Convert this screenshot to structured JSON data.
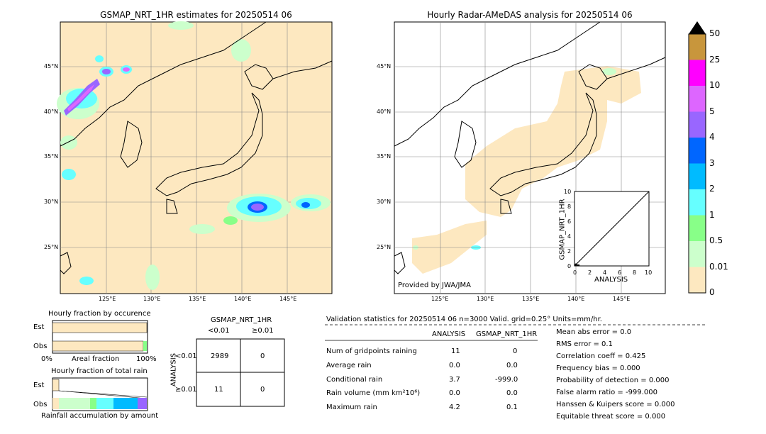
{
  "left_map": {
    "title": "GSMAP_NRT_1HR estimates for 20250514 06",
    "lat_labels": [
      "45°N",
      "40°N",
      "35°N",
      "30°N",
      "25°N"
    ],
    "lon_labels": [
      "125°E",
      "130°E",
      "135°E",
      "140°E",
      "145°E"
    ]
  },
  "right_map": {
    "title": "Hourly Radar-AMeDAS analysis for 20250514 06",
    "lat_labels": [
      "45°N",
      "40°N",
      "35°N",
      "30°N",
      "25°N"
    ],
    "lon_labels": [
      "125°E",
      "130°E",
      "135°E",
      "140°E",
      "145°E"
    ],
    "credit": "Provided by JWA/JMA"
  },
  "inset_scatter": {
    "ylabel": "GSMAP_NRT_1HR",
    "xlabel": "ANALYSIS",
    "ticks": [
      "0",
      "2",
      "4",
      "6",
      "8",
      "10"
    ]
  },
  "colorbar": {
    "labels": [
      "50",
      "25",
      "10",
      "5",
      "4",
      "3",
      "2",
      "1",
      "0.5",
      "0.01",
      "0"
    ],
    "colors": [
      "#c8963c",
      "#ff00ff",
      "#dd66ff",
      "#9966ff",
      "#0066ff",
      "#00bbff",
      "#66ffff",
      "#88ff88",
      "#ccffcc",
      "#fde8c0"
    ]
  },
  "fraction_occurrence": {
    "title": "Hourly fraction by occurence",
    "rows": [
      "Est",
      "Obs"
    ],
    "axis_left": "0%",
    "axis_mid": "Areal fraction",
    "axis_right": "100%"
  },
  "fraction_total": {
    "title": "Hourly fraction of total rain",
    "rows": [
      "Est",
      "Obs"
    ],
    "footer": "Rainfall accumulation by amount"
  },
  "contingency": {
    "title": "GSMAP_NRT_1HR",
    "col_headers": [
      "<0.01",
      "≥0.01"
    ],
    "row_headers": [
      "<0.01",
      "≥0.01"
    ],
    "side_label": "ANALYSIS",
    "cells": [
      [
        "2989",
        "0"
      ],
      [
        "11",
        "0"
      ]
    ]
  },
  "validation": {
    "header": "Validation statistics for 20250514 06  n=3000 Valid. grid=0.25° Units=mm/hr.",
    "col_analysis": "ANALYSIS",
    "col_gsmap": "GSMAP_NRT_1HR",
    "rows": [
      {
        "label": "Num of gridpoints raining",
        "analysis": "11",
        "gsmap": "0"
      },
      {
        "label": "Average rain",
        "analysis": "0.0",
        "gsmap": "0.0"
      },
      {
        "label": "Conditional rain",
        "analysis": "3.7",
        "gsmap": "-999.0"
      },
      {
        "label": "Rain volume (mm km²10⁶)",
        "analysis": "0.0",
        "gsmap": "0.0"
      },
      {
        "label": "Maximum rain",
        "analysis": "4.2",
        "gsmap": "0.1"
      }
    ],
    "scores": [
      "Mean abs error =    0.0",
      "RMS error =    0.1",
      "Correlation coeff =  0.425",
      "Frequency bias =  0.000",
      "Probability of detection =  0.000",
      "False alarm ratio = -999.000",
      "Hanssen & Kuipers score =  0.000",
      "Equitable threat score =  0.000"
    ]
  },
  "chart_data": {
    "type": "table",
    "contingency_table": {
      "rows": [
        "<0.01",
        "≥0.01"
      ],
      "cols": [
        "<0.01",
        "≥0.01"
      ],
      "values": [
        [
          2989,
          0
        ],
        [
          11,
          0
        ]
      ]
    },
    "statistics": {
      "analysis": [
        11,
        0.0,
        3.7,
        0.0,
        4.2
      ],
      "gsmap": [
        0,
        0.0,
        -999.0,
        0.0,
        0.1
      ]
    }
  }
}
